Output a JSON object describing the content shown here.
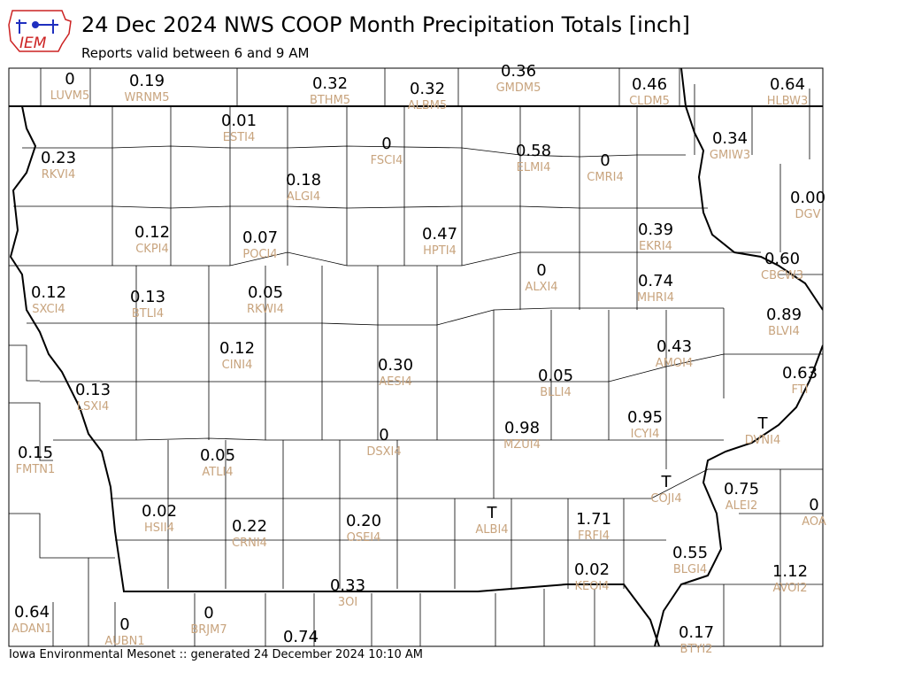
{
  "header": {
    "title": "24 Dec 2024 NWS COOP Month Precipitation Totals [inch]",
    "subtitle": "Reports valid between 6 and 9 AM",
    "logo_text": "IEM"
  },
  "footer": {
    "text": "Iowa Environmental Mesonet :: generated 24 December 2024 10:10 AM"
  },
  "colors": {
    "value": "#000000",
    "station": "#c8a47e",
    "logo": "#cc2222",
    "logo_blue": "#1f2fbf"
  },
  "stations": [
    {
      "id": "LUVM5",
      "value": "0"
    },
    {
      "id": "WRNM5",
      "value": "0.19"
    },
    {
      "id": "BTHM5",
      "value": "0.32"
    },
    {
      "id": "ALBM5",
      "value": "0.32"
    },
    {
      "id": "GMDM5",
      "value": "0.36"
    },
    {
      "id": "CLDM5",
      "value": "0.46"
    },
    {
      "id": "HLBW3",
      "value": "0.64"
    },
    {
      "id": "ESTI4",
      "value": "0.01"
    },
    {
      "id": "FSCI4",
      "value": "0"
    },
    {
      "id": "ELMI4",
      "value": "0.58"
    },
    {
      "id": "CMRI4",
      "value": "0"
    },
    {
      "id": "GMIW3",
      "value": "0.34"
    },
    {
      "id": "RKVI4",
      "value": "0.23"
    },
    {
      "id": "ALGI4",
      "value": "0.18"
    },
    {
      "id": "DGV",
      "value": "0.00"
    },
    {
      "id": "CKPI4",
      "value": "0.12"
    },
    {
      "id": "POCI4",
      "value": "0.07"
    },
    {
      "id": "HPTI4",
      "value": "0.47"
    },
    {
      "id": "EKRI4",
      "value": "0.39"
    },
    {
      "id": "CBCW3",
      "value": "0.60"
    },
    {
      "id": "ALXI4",
      "value": "0"
    },
    {
      "id": "MHRI4",
      "value": "0.74"
    },
    {
      "id": "SXCI4",
      "value": "0.12"
    },
    {
      "id": "BTLI4",
      "value": "0.13"
    },
    {
      "id": "RKWI4",
      "value": "0.05"
    },
    {
      "id": "BLVI4",
      "value": "0.89"
    },
    {
      "id": "CINI4",
      "value": "0.12"
    },
    {
      "id": "AMOI4",
      "value": "0.43"
    },
    {
      "id": "AESI4",
      "value": "0.30"
    },
    {
      "id": "FTI",
      "value": "0.63"
    },
    {
      "id": "LSXI4",
      "value": "0.13"
    },
    {
      "id": "BLLI4",
      "value": "0.05"
    },
    {
      "id": "ICYI4",
      "value": "0.95"
    },
    {
      "id": "DVNI4",
      "value": "T"
    },
    {
      "id": "MZUI4",
      "value": "0.98"
    },
    {
      "id": "DSXI4",
      "value": "0"
    },
    {
      "id": "FMTN1",
      "value": "0.15"
    },
    {
      "id": "ATLI4",
      "value": "0.05"
    },
    {
      "id": "COJI4",
      "value": "T"
    },
    {
      "id": "ALEI2",
      "value": "0.75"
    },
    {
      "id": "HSII4",
      "value": "0.02"
    },
    {
      "id": "CRNI4",
      "value": "0.22"
    },
    {
      "id": "OSEI4",
      "value": "0.20"
    },
    {
      "id": "ALBI4",
      "value": "T"
    },
    {
      "id": "FRFI4",
      "value": "1.71"
    },
    {
      "id": "AOA",
      "value": "0"
    },
    {
      "id": "BLGI4",
      "value": "0.55"
    },
    {
      "id": "KEOI4",
      "value": "0.02"
    },
    {
      "id": "AVOI2",
      "value": "1.12"
    },
    {
      "id": "3OI",
      "value": "0.33"
    },
    {
      "id": "ADAN1",
      "value": "0.64"
    },
    {
      "id": "AUBN1",
      "value": "0"
    },
    {
      "id": "BRJM7",
      "value": "0"
    },
    {
      "id": "BTYI2",
      "value": "0.17"
    },
    {
      "id": "",
      "value": "0.74"
    }
  ]
}
